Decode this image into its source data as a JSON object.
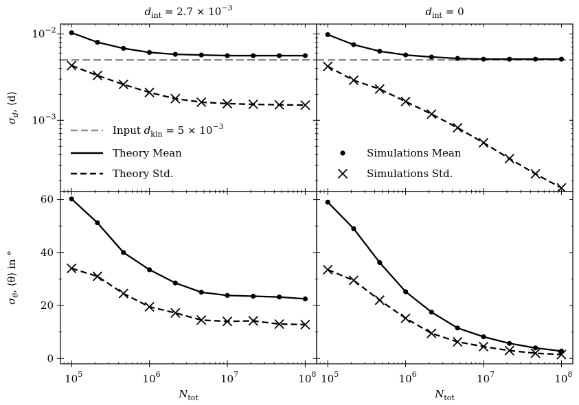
{
  "chart_data": [
    {
      "type": "line",
      "panel": "top-left",
      "title": "d_int = 2.7 × 10^-3",
      "title_parts": {
        "var": "d",
        "sub": "int",
        "eq": " = 2.7 × 10",
        "sup": "−3"
      },
      "xscale": "log",
      "yscale": "log",
      "xlim": [
        72000,
        140000000
      ],
      "ylim": [
        0.00015,
        0.013
      ],
      "ylabel_parts": {
        "a": "σ",
        "a_sub": "d",
        "b": ", ⟨d⟩"
      },
      "yticks": [
        {
          "value": 0.01,
          "base": "10",
          "exp": "−2"
        },
        {
          "value": 0.001,
          "base": "10",
          "exp": "−3"
        }
      ],
      "x": [
        100000,
        215000,
        464000,
        1000000,
        2150000,
        4640000,
        10000000,
        21500000,
        46400000,
        100000000
      ],
      "hline": {
        "value": 0.005,
        "color": "#8c8c8c"
      },
      "series": [
        {
          "name": "Theory Mean",
          "style": "solid",
          "marker": "dot",
          "values": [
            0.0103,
            0.008,
            0.0068,
            0.0061,
            0.0058,
            0.0057,
            0.0056,
            0.0056,
            0.0056,
            0.0056
          ]
        },
        {
          "name": "Theory Std.",
          "style": "dashed",
          "marker": "x",
          "values": [
            0.0043,
            0.0033,
            0.0026,
            0.0021,
            0.00178,
            0.00162,
            0.00156,
            0.00153,
            0.00151,
            0.0015
          ]
        }
      ]
    },
    {
      "type": "line",
      "panel": "top-right",
      "title": "d_int = 0",
      "title_parts": {
        "var": "d",
        "sub": "int",
        "eq": " = 0",
        "sup": ""
      },
      "xscale": "log",
      "yscale": "log",
      "xlim": [
        72000,
        140000000
      ],
      "ylim": [
        0.00015,
        0.013
      ],
      "x": [
        100000,
        215000,
        464000,
        1000000,
        2150000,
        4640000,
        10000000,
        21500000,
        46400000,
        100000000
      ],
      "hline": {
        "value": 0.005,
        "color": "#8c8c8c"
      },
      "series": [
        {
          "name": "Simulations Mean",
          "style": "solid",
          "marker": "dot",
          "values": [
            0.0098,
            0.0075,
            0.0063,
            0.0057,
            0.0054,
            0.0052,
            0.0051,
            0.0051,
            0.0051,
            0.0051
          ]
        },
        {
          "name": "Simulations Std.",
          "style": "dashed",
          "marker": "x",
          "values": [
            0.0042,
            0.0029,
            0.0023,
            0.00165,
            0.00118,
            0.00082,
            0.00055,
            0.00036,
            0.00024,
            0.000165
          ]
        }
      ]
    },
    {
      "type": "line",
      "panel": "bottom-left",
      "xscale": "log",
      "yscale": "linear",
      "xlim": [
        72000,
        140000000
      ],
      "ylim": [
        -2,
        63
      ],
      "ylabel_parts": {
        "a": "σ",
        "a_sub": "θ",
        "b": ", ⟨θ⟩ in °"
      },
      "xlabel_parts": {
        "var": "N",
        "sub": "tot"
      },
      "yticks": [
        0,
        20,
        40,
        60
      ],
      "xticks": [
        {
          "value": 100000,
          "base": "10",
          "exp": "5"
        },
        {
          "value": 1000000,
          "base": "10",
          "exp": "6"
        },
        {
          "value": 10000000,
          "base": "10",
          "exp": "7"
        },
        {
          "value": 100000000,
          "base": "10",
          "exp": "8"
        }
      ],
      "x": [
        100000,
        215000,
        464000,
        1000000,
        2150000,
        4640000,
        10000000,
        21500000,
        46400000,
        100000000
      ],
      "series": [
        {
          "style": "solid",
          "marker": "dot",
          "values": [
            60.2,
            51.2,
            40.0,
            33.5,
            28.5,
            25.0,
            23.8,
            23.5,
            23.2,
            22.5
          ]
        },
        {
          "style": "dashed",
          "marker": "x",
          "values": [
            34.0,
            31.0,
            24.5,
            19.5,
            17.2,
            14.5,
            14.0,
            14.2,
            13.0,
            12.8
          ]
        }
      ]
    },
    {
      "type": "line",
      "panel": "bottom-right",
      "xscale": "log",
      "yscale": "linear",
      "xlim": [
        72000,
        140000000
      ],
      "ylim": [
        -2,
        63
      ],
      "xlabel_parts": {
        "var": "N",
        "sub": "tot"
      },
      "xticks": [
        {
          "value": 100000,
          "base": "10",
          "exp": "5"
        },
        {
          "value": 1000000,
          "base": "10",
          "exp": "6"
        },
        {
          "value": 10000000,
          "base": "10",
          "exp": "7"
        },
        {
          "value": 100000000,
          "base": "10",
          "exp": "8"
        }
      ],
      "x": [
        100000,
        215000,
        464000,
        1000000,
        2150000,
        4640000,
        10000000,
        21500000,
        46400000,
        100000000
      ],
      "series": [
        {
          "style": "solid",
          "marker": "dot",
          "values": [
            59.0,
            49.0,
            36.2,
            25.2,
            17.5,
            11.5,
            8.2,
            5.7,
            4.0,
            2.8
          ]
        },
        {
          "style": "dashed",
          "marker": "x",
          "values": [
            33.5,
            29.5,
            22.0,
            15.2,
            9.5,
            6.3,
            4.5,
            3.0,
            2.0,
            1.5
          ]
        }
      ]
    }
  ],
  "legend_left": {
    "placement": "bottom-left of top-left panel",
    "entries": [
      {
        "text": "Input ",
        "var": "d",
        "sub": "kin",
        "eq": " = 5 × 10",
        "sup": "−3",
        "style": "dashed-gray"
      },
      {
        "text": "Theory Mean",
        "style": "solid"
      },
      {
        "text": "Theory Std.",
        "style": "dashed"
      }
    ]
  },
  "legend_right": {
    "placement": "bottom-left of top-right panel",
    "entries": [
      {
        "text": "Simulations Mean",
        "marker": "dot"
      },
      {
        "text": "Simulations Std.",
        "marker": "x"
      }
    ]
  }
}
